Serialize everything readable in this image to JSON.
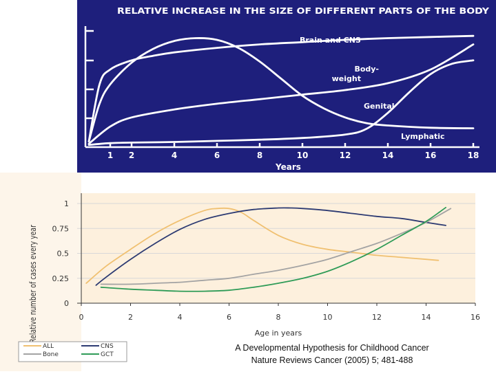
{
  "top_chart": {
    "title": "RELATIVE INCREASE IN THE SIZE OF DIFFERENT PARTS OF THE BODY",
    "xlabel": "Years",
    "colors": {
      "background": "#1e1f7c",
      "ink": "#ffffff"
    }
  },
  "bottom_chart": {
    "ylabel": "Relative number of cases every year",
    "xlabel": "Age in years",
    "colors": {
      "background": "#fdf0dd",
      "grid": "#d8d8d8",
      "axis": "#333333"
    }
  },
  "caption": {
    "line1": "A Developmental Hypothesis for Childhood Cancer",
    "line2": "Nature Reviews Cancer (2005) 5; 481-488"
  },
  "chart_data": [
    {
      "type": "line",
      "title": "RELATIVE INCREASE IN THE SIZE OF DIFFERENT PARTS OF THE BODY",
      "xlabel": "Years",
      "ylabel": "",
      "xlim": [
        0,
        18
      ],
      "x_ticks": [
        1,
        2,
        4,
        6,
        8,
        10,
        12,
        14,
        16,
        18
      ],
      "grid": false,
      "series": [
        {
          "name": "Brain and CNS",
          "color": "#ffffff",
          "x": [
            0,
            0.5,
            1,
            2,
            3,
            4,
            6,
            8,
            10,
            12,
            14,
            16,
            18
          ],
          "y": [
            0.05,
            0.55,
            0.68,
            0.76,
            0.8,
            0.83,
            0.87,
            0.9,
            0.92,
            0.94,
            0.955,
            0.965,
            0.975
          ]
        },
        {
          "name": "Body-weight",
          "color": "#ffffff",
          "x": [
            0,
            1,
            2,
            4,
            6,
            8,
            10,
            12,
            14,
            16,
            18
          ],
          "y": [
            0.03,
            0.18,
            0.26,
            0.33,
            0.38,
            0.42,
            0.46,
            0.5,
            0.56,
            0.68,
            0.9
          ]
        },
        {
          "name": "Genital",
          "color": "#ffffff",
          "x": [
            0,
            1,
            2,
            4,
            6,
            8,
            10,
            12,
            13,
            14,
            15,
            16,
            17,
            18
          ],
          "y": [
            0.02,
            0.035,
            0.04,
            0.045,
            0.055,
            0.065,
            0.08,
            0.11,
            0.16,
            0.3,
            0.48,
            0.64,
            0.73,
            0.76
          ]
        },
        {
          "name": "Lymphatic",
          "color": "#ffffff",
          "x": [
            0,
            0.5,
            1,
            2,
            3,
            4,
            5,
            6,
            7,
            8,
            9,
            10,
            11,
            12,
            13,
            14,
            16,
            18
          ],
          "y": [
            0.05,
            0.38,
            0.55,
            0.74,
            0.86,
            0.93,
            0.955,
            0.94,
            0.87,
            0.75,
            0.6,
            0.45,
            0.34,
            0.26,
            0.21,
            0.19,
            0.17,
            0.165
          ]
        }
      ]
    },
    {
      "type": "line",
      "title": "",
      "xlabel": "Age in years",
      "ylabel": "Relative number of cases every year",
      "xlim": [
        0,
        16
      ],
      "ylim": [
        0,
        1
      ],
      "x_ticks": [
        0,
        2,
        4,
        6,
        8,
        10,
        12,
        14,
        16
      ],
      "y_ticks": [
        0,
        0.25,
        0.5,
        0.75,
        1
      ],
      "grid": true,
      "legend": "bottom-left",
      "series": [
        {
          "name": "ALL",
          "color": "#f0c070",
          "x": [
            0.2,
            1,
            2,
            3,
            4,
            5,
            5.5,
            6,
            6.5,
            7,
            8,
            9,
            10,
            11,
            12,
            13,
            14,
            14.5
          ],
          "y": [
            0.2,
            0.37,
            0.54,
            0.7,
            0.83,
            0.93,
            0.95,
            0.95,
            0.91,
            0.83,
            0.68,
            0.59,
            0.54,
            0.51,
            0.48,
            0.46,
            0.44,
            0.43
          ]
        },
        {
          "name": "CNS",
          "color": "#2c3a72",
          "x": [
            0.6,
            1,
            2,
            3,
            4,
            5,
            6,
            7,
            8,
            8.5,
            9,
            10,
            11,
            12,
            13,
            14,
            14.8
          ],
          "y": [
            0.18,
            0.26,
            0.44,
            0.6,
            0.74,
            0.84,
            0.9,
            0.94,
            0.955,
            0.955,
            0.95,
            0.93,
            0.9,
            0.87,
            0.85,
            0.81,
            0.78
          ]
        },
        {
          "name": "Bone",
          "color": "#a3a3a3",
          "x": [
            0.8,
            2,
            3,
            4,
            5,
            6,
            7,
            8,
            9,
            10,
            11,
            12,
            13,
            14,
            15
          ],
          "y": [
            0.19,
            0.19,
            0.2,
            0.21,
            0.23,
            0.25,
            0.29,
            0.33,
            0.38,
            0.44,
            0.52,
            0.6,
            0.7,
            0.81,
            0.95
          ]
        },
        {
          "name": "GCT",
          "color": "#2e9b57",
          "x": [
            0.8,
            2,
            3,
            4,
            5,
            6,
            7,
            8,
            9,
            10,
            11,
            12,
            13,
            14,
            14.8
          ],
          "y": [
            0.16,
            0.14,
            0.13,
            0.12,
            0.12,
            0.13,
            0.16,
            0.2,
            0.25,
            0.32,
            0.42,
            0.54,
            0.68,
            0.82,
            0.96
          ]
        }
      ]
    }
  ]
}
